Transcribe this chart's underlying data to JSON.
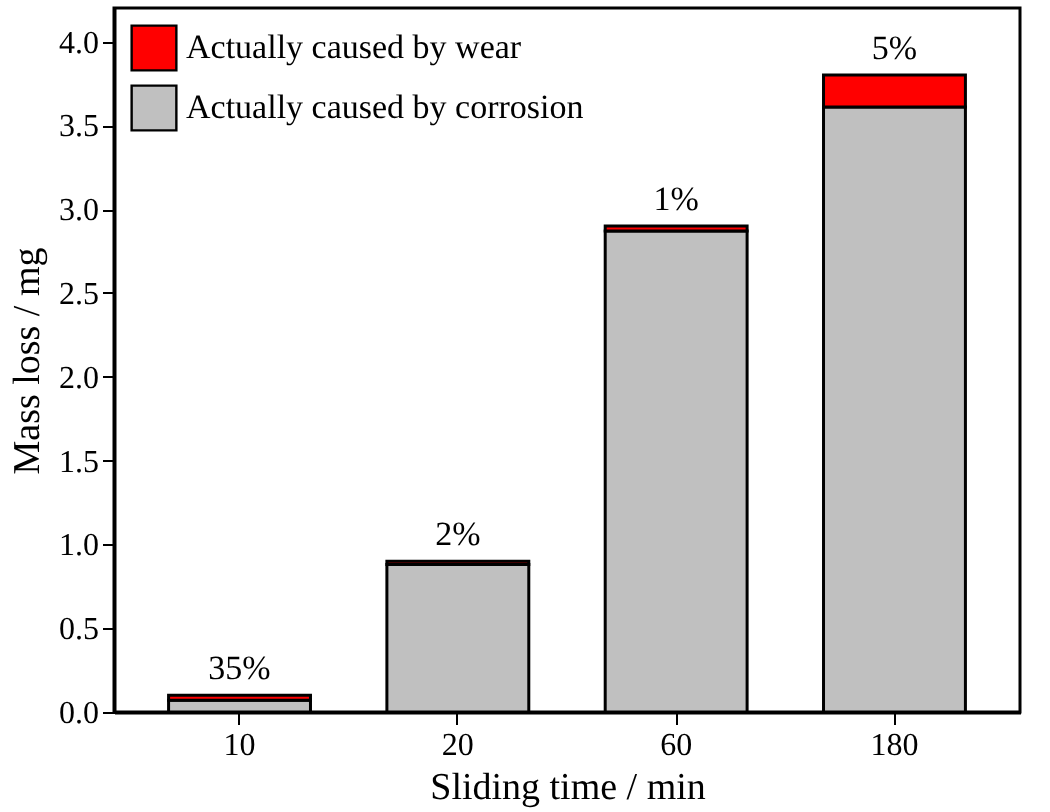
{
  "chart_data": {
    "type": "bar",
    "stacked": true,
    "xlabel": "Sliding time / min",
    "ylabel": "Mass loss / mg",
    "categories": [
      "10",
      "20",
      "60",
      "180"
    ],
    "series": [
      {
        "name": "Actually caused by corrosion",
        "color": "#c0c0c0",
        "values": [
          0.07,
          0.88,
          2.87,
          3.61
        ]
      },
      {
        "name": "Actually caused by wear",
        "color": "#ff0000",
        "values": [
          0.03,
          0.02,
          0.03,
          0.19
        ]
      }
    ],
    "ylim": [
      0,
      4.2
    ],
    "yticks": [
      {
        "value": 0,
        "label": "0.0"
      },
      {
        "value": 0.5,
        "label": "0.5"
      },
      {
        "value": 1,
        "label": "1.0"
      },
      {
        "value": 1.5,
        "label": "1.5"
      },
      {
        "value": 2,
        "label": "2.0"
      },
      {
        "value": 2.5,
        "label": "2.5"
      },
      {
        "value": 3,
        "label": "3.0"
      },
      {
        "value": 3.5,
        "label": "3.5"
      },
      {
        "value": 4,
        "label": "4.0"
      }
    ],
    "annotations": [
      {
        "text": "35%",
        "x": "10",
        "y": 0.1
      },
      {
        "text": "2%",
        "x": "20",
        "y": 0.9
      },
      {
        "text": "1%",
        "x": "60",
        "y": 2.9
      },
      {
        "text": "5%",
        "x": "180",
        "y": 3.8
      }
    ],
    "legend": "top left",
    "grid": false
  }
}
